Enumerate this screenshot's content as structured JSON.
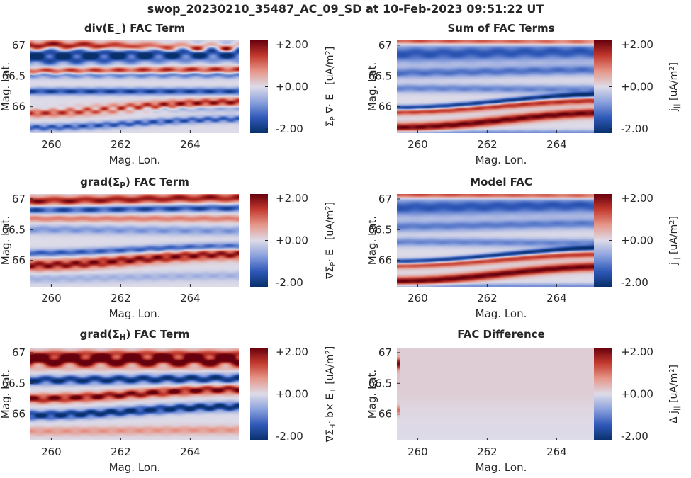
{
  "figure": {
    "suptitle": "swop_20230210_35487_AC_09_SD at 10-Feb-2023 09:51:22 UT"
  },
  "colormap": {
    "name": "diverging blue-white-red",
    "stops": [
      "#08306b",
      "#2f58b8",
      "#8aa0dd",
      "#dddbe8",
      "#e6978a",
      "#c33a2e",
      "#67000d"
    ]
  },
  "chart_data": [
    {
      "type": "heatmap",
      "id": "divE",
      "title": "div(E⊥) FAC Term",
      "xlabel": "Mag. Lon.",
      "ylabel": "Mag. Lat.",
      "xlim": [
        259.4,
        265.4
      ],
      "ylim": [
        65.57,
        67.08
      ],
      "xticks": [
        "260",
        "262",
        "264"
      ],
      "yticks": [
        "67",
        "66.5",
        "66"
      ],
      "clim": [
        -2.2,
        2.2
      ],
      "cbar_ticks": [
        "+2.00",
        "+0.00",
        "-2.00"
      ],
      "cbar_label": "ΣP ∇· E⊥ [uA/m2]",
      "bands": [
        {
          "lat0": 67.0,
          "lat1": 66.95,
          "val": 2.0,
          "sigma": 0.05,
          "amp": 1.5
        },
        {
          "lat0": 66.82,
          "lat1": 66.88,
          "val": -2.2,
          "sigma": 0.09,
          "amp": 1.5
        },
        {
          "lat0": 66.58,
          "lat1": 66.6,
          "val": 1.6,
          "sigma": 0.04,
          "amp": 1.0
        },
        {
          "lat0": 66.52,
          "lat1": 66.52,
          "val": -1.2,
          "sigma": 0.04,
          "amp": 1.0
        },
        {
          "lat0": 66.25,
          "lat1": 66.25,
          "val": -1.7,
          "sigma": 0.04,
          "amp": 0.6
        },
        {
          "lat0": 65.95,
          "lat1": 65.98,
          "val": -0.8,
          "sigma": 0.04,
          "amp": 0.9
        },
        {
          "lat0": 65.91,
          "lat1": 66.07,
          "val": 1.8,
          "sigma": 0.05,
          "amp": 1.0
        },
        {
          "lat0": 65.66,
          "lat1": 65.8,
          "val": -1.4,
          "sigma": 0.04,
          "amp": 1.0
        }
      ]
    },
    {
      "type": "heatmap",
      "id": "sum",
      "title": "Sum of FAC Terms",
      "xlabel": "Mag. Lon.",
      "ylabel": "Mag. Lat.",
      "xlim": [
        259.4,
        265.4
      ],
      "ylim": [
        65.57,
        67.08
      ],
      "xticks": [
        "260",
        "262",
        "264"
      ],
      "yticks": [
        "67",
        "66.5",
        "66"
      ],
      "clim": [
        -2.2,
        2.2
      ],
      "cbar_ticks": [
        "+2.00",
        "+0.00",
        "-2.00"
      ],
      "cbar_label": "j|| [uA/m2]",
      "bands": [
        {
          "lat0": 67.07,
          "lat1": 67.05,
          "val": 1.4,
          "sigma": 0.04,
          "amp": 0.3
        },
        {
          "lat0": 66.86,
          "lat1": 66.9,
          "val": -1.5,
          "sigma": 0.1,
          "amp": 0.3
        },
        {
          "lat0": 66.55,
          "lat1": 66.6,
          "val": -1.2,
          "sigma": 0.06,
          "amp": 0.3
        },
        {
          "lat0": 66.3,
          "lat1": 66.28,
          "val": -1.0,
          "sigma": 0.05,
          "amp": 0.3
        },
        {
          "lat0": 65.98,
          "lat1": 66.2,
          "val": -2.2,
          "sigma": 0.03,
          "amp": 0.2
        },
        {
          "lat0": 65.92,
          "lat1": 66.1,
          "val": 1.6,
          "sigma": 0.04,
          "amp": 0.2
        },
        {
          "lat0": 65.66,
          "lat1": 65.9,
          "val": 2.2,
          "sigma": 0.05,
          "amp": 0.2
        },
        {
          "lat0": 65.58,
          "lat1": 65.58,
          "val": -0.9,
          "sigma": 0.03,
          "amp": 0.2
        }
      ]
    },
    {
      "type": "heatmap",
      "id": "gradP",
      "title": "grad(ΣP) FAC Term",
      "xlabel": "Mag. Lon.",
      "ylabel": "Mag. Lat.",
      "xlim": [
        259.4,
        265.4
      ],
      "ylim": [
        65.57,
        67.08
      ],
      "xticks": [
        "260",
        "262",
        "264"
      ],
      "yticks": [
        "67",
        "66.5",
        "66"
      ],
      "clim": [
        -2.2,
        2.2
      ],
      "cbar_ticks": [
        "+2.00",
        "+0.00",
        "-2.00"
      ],
      "cbar_label": "∇ΣP· E⊥ [uA/m2]",
      "bands": [
        {
          "lat0": 66.97,
          "lat1": 67.02,
          "val": 1.8,
          "sigma": 0.05,
          "amp": 0.9
        },
        {
          "lat0": 66.82,
          "lat1": 66.85,
          "val": -1.6,
          "sigma": 0.04,
          "amp": 0.8
        },
        {
          "lat0": 66.68,
          "lat1": 66.68,
          "val": 0.9,
          "sigma": 0.04,
          "amp": 0.6
        },
        {
          "lat0": 66.5,
          "lat1": 66.48,
          "val": -0.8,
          "sigma": 0.05,
          "amp": 0.6
        },
        {
          "lat0": 66.12,
          "lat1": 66.23,
          "val": -1.4,
          "sigma": 0.04,
          "amp": 0.5
        },
        {
          "lat0": 65.92,
          "lat1": 66.1,
          "val": 1.9,
          "sigma": 0.06,
          "amp": 0.8
        },
        {
          "lat0": 65.7,
          "lat1": 65.75,
          "val": -0.5,
          "sigma": 0.05,
          "amp": 0.6
        }
      ]
    },
    {
      "type": "heatmap",
      "id": "model",
      "title": "Model FAC",
      "xlabel": "Mag. Lon.",
      "ylabel": "Mag. Lat.",
      "xlim": [
        259.4,
        265.4
      ],
      "ylim": [
        65.57,
        67.08
      ],
      "xticks": [
        "260",
        "262",
        "264"
      ],
      "yticks": [
        "67",
        "66.5",
        "66"
      ],
      "clim": [
        -2.2,
        2.2
      ],
      "cbar_ticks": [
        "+2.00",
        "+0.00",
        "-2.00"
      ],
      "cbar_label": "j|| [uA/m2]",
      "bands": [
        {
          "lat0": 67.07,
          "lat1": 67.05,
          "val": 1.5,
          "sigma": 0.04,
          "amp": 0.2
        },
        {
          "lat0": 66.86,
          "lat1": 66.9,
          "val": -1.5,
          "sigma": 0.1,
          "amp": 0.2
        },
        {
          "lat0": 66.55,
          "lat1": 66.6,
          "val": -1.1,
          "sigma": 0.06,
          "amp": 0.2
        },
        {
          "lat0": 66.3,
          "lat1": 66.28,
          "val": -1.0,
          "sigma": 0.05,
          "amp": 0.2
        },
        {
          "lat0": 65.98,
          "lat1": 66.2,
          "val": -2.2,
          "sigma": 0.03,
          "amp": 0.1
        },
        {
          "lat0": 65.92,
          "lat1": 66.1,
          "val": 1.5,
          "sigma": 0.04,
          "amp": 0.1
        },
        {
          "lat0": 65.66,
          "lat1": 65.9,
          "val": 2.2,
          "sigma": 0.05,
          "amp": 0.1
        },
        {
          "lat0": 65.58,
          "lat1": 65.58,
          "val": -0.9,
          "sigma": 0.03,
          "amp": 0.1
        }
      ]
    },
    {
      "type": "heatmap",
      "id": "gradH",
      "title": "grad(ΣH) FAC Term",
      "xlabel": "Mag. Lon.",
      "ylabel": "Mag. Lat.",
      "xlim": [
        259.4,
        265.4
      ],
      "ylim": [
        65.57,
        67.08
      ],
      "xticks": [
        "260",
        "262",
        "264"
      ],
      "yticks": [
        "67",
        "66.5",
        "66"
      ],
      "clim": [
        -2.2,
        2.2
      ],
      "cbar_ticks": [
        "+2.00",
        "+0.00",
        "-2.00"
      ],
      "cbar_label": "∇ΣH· b× E⊥ [uA/m2]",
      "bands": [
        {
          "lat0": 66.88,
          "lat1": 66.88,
          "val": 2.4,
          "sigma": 0.08,
          "amp": 2.0
        },
        {
          "lat0": 66.96,
          "lat1": 66.98,
          "val": 0.7,
          "sigma": 0.05,
          "amp": 0.6
        },
        {
          "lat0": 66.55,
          "lat1": 66.58,
          "val": -2.0,
          "sigma": 0.05,
          "amp": 1.3
        },
        {
          "lat0": 66.25,
          "lat1": 66.4,
          "val": 2.0,
          "sigma": 0.05,
          "amp": 1.1
        },
        {
          "lat0": 65.98,
          "lat1": 66.12,
          "val": -2.1,
          "sigma": 0.05,
          "amp": 1.1
        },
        {
          "lat0": 65.72,
          "lat1": 65.74,
          "val": 0.7,
          "sigma": 0.05,
          "amp": 0.6
        }
      ]
    },
    {
      "type": "heatmap",
      "id": "diff",
      "title": "FAC Difference",
      "xlabel": "Mag. Lon.",
      "ylabel": "Mag. Lat.",
      "xlim": [
        259.4,
        265.4
      ],
      "ylim": [
        65.57,
        67.08
      ],
      "xticks": [
        "260",
        "262",
        "264"
      ],
      "yticks": [
        "67",
        "66.5",
        "66"
      ],
      "clim": [
        -2.2,
        2.2
      ],
      "cbar_ticks": [
        "+2.00",
        "+0.00",
        "-2.00"
      ],
      "cbar_label": "Δ j|| [uA/m2]",
      "bands": [
        {
          "lat0": 66.8,
          "lat1": 66.8,
          "val": 0.3,
          "sigma": 0.4,
          "amp": 0.0
        },
        {
          "lat0": 66.82,
          "lat1": 66.82,
          "val": 1.8,
          "sigma": 0.06,
          "amp": 0.0,
          "lonmax": 259.5
        },
        {
          "lat0": 66.06,
          "lat1": 66.06,
          "val": 1.0,
          "sigma": 0.05,
          "amp": 0.0,
          "lonmax": 259.5
        }
      ]
    }
  ]
}
